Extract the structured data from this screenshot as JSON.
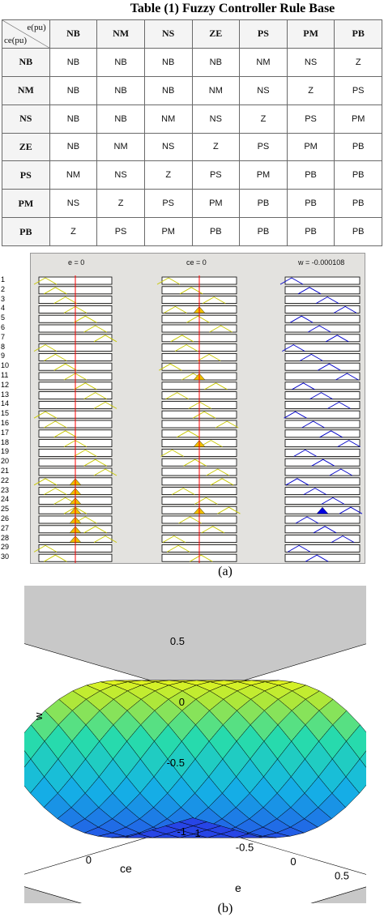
{
  "table": {
    "title": "Table (1) Fuzzy Controller Rule Base",
    "corner_top": "e(pu)",
    "corner_bottom": "ce(pu)",
    "columns": [
      "NB",
      "NM",
      "NS",
      "ZE",
      "PS",
      "PM",
      "PB"
    ],
    "rows": [
      {
        "label": "NB",
        "cells": [
          "NB",
          "NB",
          "NB",
          "NB",
          "NM",
          "NS",
          "Z"
        ]
      },
      {
        "label": "NM",
        "cells": [
          "NB",
          "NB",
          "NB",
          "NM",
          "NS",
          "Z",
          "PS"
        ]
      },
      {
        "label": "NS",
        "cells": [
          "NB",
          "NB",
          "NM",
          "NS",
          "Z",
          "PS",
          "PM"
        ]
      },
      {
        "label": "ZE",
        "cells": [
          "NB",
          "NM",
          "NS",
          "Z",
          "PS",
          "PM",
          "PB"
        ]
      },
      {
        "label": "PS",
        "cells": [
          "NM",
          "NS",
          "Z",
          "PS",
          "PM",
          "PB",
          "PB"
        ]
      },
      {
        "label": "PM",
        "cells": [
          "NS",
          "Z",
          "PS",
          "PM",
          "PB",
          "PB",
          "PB"
        ]
      },
      {
        "label": "PB",
        "cells": [
          "Z",
          "PS",
          "PM",
          "PB",
          "PB",
          "PB",
          "PB"
        ]
      }
    ]
  },
  "rule_viewer": {
    "e_label": "e = 0",
    "ce_label": "ce = 0",
    "w_label": "w = -0.000108",
    "rule_numbers": [
      "1",
      "2",
      "3",
      "4",
      "5",
      "6",
      "7",
      "8",
      "9",
      "10",
      "11",
      "12",
      "13",
      "14",
      "15",
      "16",
      "17",
      "18",
      "19",
      "20",
      "21",
      "22",
      "23",
      "24",
      "25",
      "26",
      "27",
      "28",
      "29",
      "30"
    ],
    "e_fired_rules": [
      22,
      23,
      24,
      25,
      26,
      27,
      28
    ],
    "ce_fired_rules": [
      4,
      11,
      18,
      25
    ],
    "output_fired_rules": [
      25
    ],
    "colors": {
      "input_mf": "#c8c800",
      "output_mf": "#0000c8",
      "fired": "#f0c000",
      "output_fired": "#0000e0",
      "cursor": "#ff0000",
      "panel": "#e3e2df"
    }
  },
  "surface_plot": {
    "zlabel": "w",
    "xlabel": "e",
    "ylabel": "ce",
    "z_ticks": [
      "0.5",
      "0",
      "-0.5"
    ],
    "e_ticks": [
      "1",
      "0.5",
      "0",
      "-0.5",
      "-1"
    ],
    "ce_ticks": [
      "1",
      "0",
      "-1"
    ],
    "zlim": [
      -1,
      1
    ],
    "colors": {
      "background": "#c8c8c8",
      "axes": "#ffffff",
      "edge": "#000000"
    }
  },
  "captions": {
    "a": "(a)",
    "b": "(b)"
  }
}
